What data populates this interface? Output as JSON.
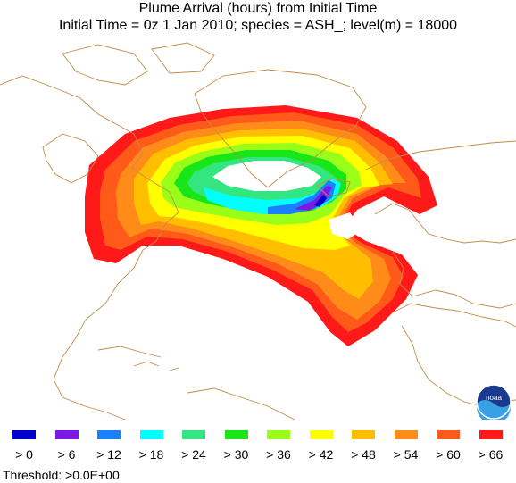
{
  "header": {
    "title": "Plume Arrival (hours) from Initial Time",
    "subtitle": "Initial Time =  0z  1 Jan 2010;  species = ASH_;  level(m) = 18000"
  },
  "legend": {
    "items": [
      {
        "label": "> 0",
        "color": "#0000cc"
      },
      {
        "label": "> 6",
        "color": "#7f17e6"
      },
      {
        "label": "> 12",
        "color": "#1a80ff"
      },
      {
        "label": "> 18",
        "color": "#00ffff"
      },
      {
        "label": "> 24",
        "color": "#33e680"
      },
      {
        "label": "> 30",
        "color": "#19e619"
      },
      {
        "label": "> 36",
        "color": "#99ff19"
      },
      {
        "label": "> 42",
        "color": "#ffff00"
      },
      {
        "label": "> 48",
        "color": "#ffbf00"
      },
      {
        "label": "> 54",
        "color": "#ff8c19"
      },
      {
        "label": "> 60",
        "color": "#ff5a19"
      },
      {
        "label": "> 66",
        "color": "#ff1919"
      }
    ]
  },
  "footer": {
    "threshold": "Threshold: >0.0E+00"
  },
  "logo": {
    "icon": "noaa-logo-icon",
    "text": "noaa"
  },
  "colors": {
    "coastline": "#c48a4a",
    "background": "#ffffff"
  }
}
